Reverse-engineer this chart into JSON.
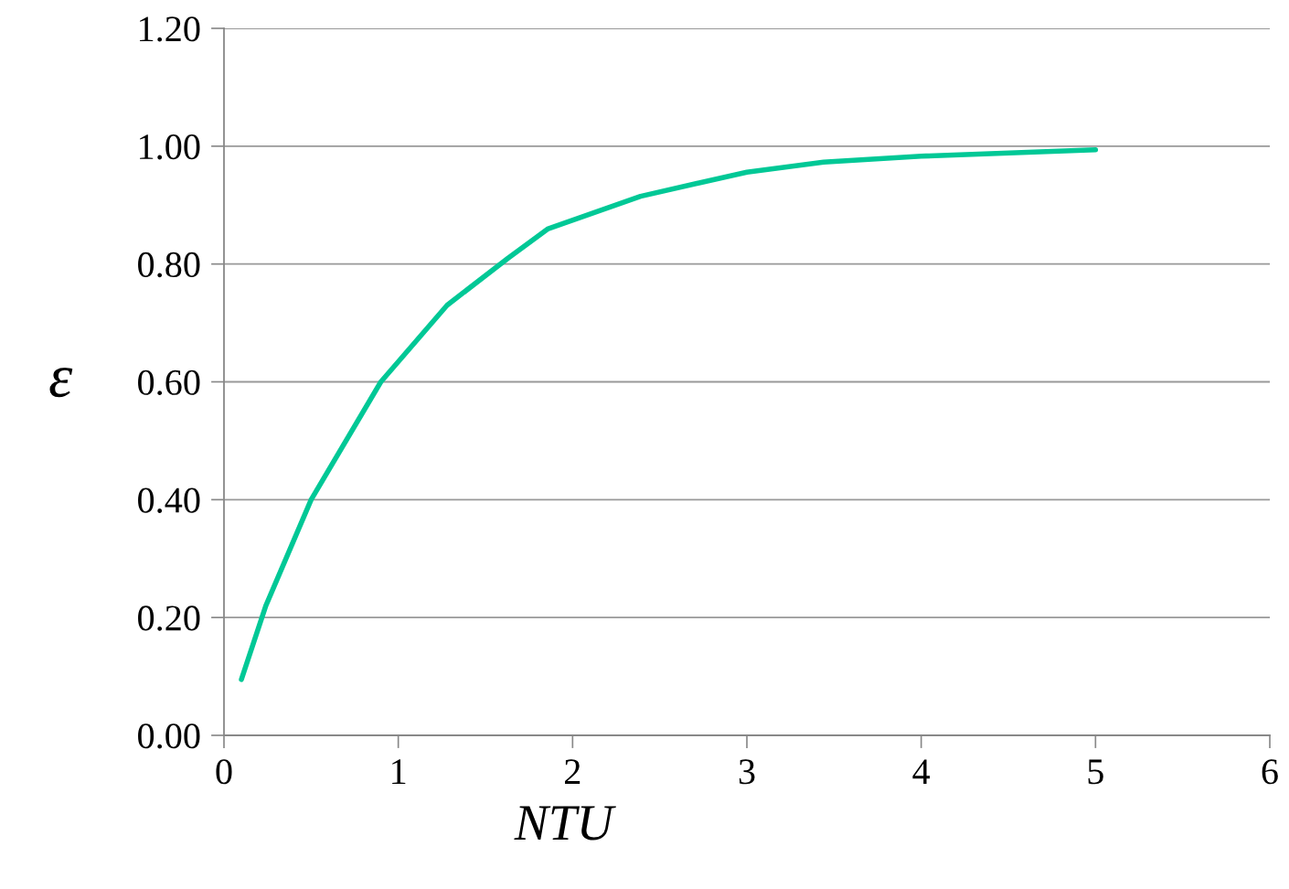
{
  "chart_data": {
    "type": "line",
    "xlabel": "NTU",
    "ylabel": "ε",
    "x": [
      0.1,
      0.24,
      0.5,
      0.9,
      1.28,
      1.63,
      1.86,
      2.39,
      3.0,
      3.44,
      4.0,
      5.0
    ],
    "series": [
      {
        "color": "#00c896",
        "values": [
          0.095,
          0.22,
          0.4,
          0.6,
          0.73,
          0.81,
          0.86,
          0.915,
          0.956,
          0.973,
          0.983,
          0.994
        ]
      }
    ],
    "xlim": [
      0,
      6
    ],
    "xticks": [
      0,
      1,
      2,
      3,
      4,
      5,
      6
    ],
    "ylim": [
      0,
      1.2
    ],
    "yticks": [
      {
        "value": 0,
        "label": "0.00"
      },
      {
        "value": 0.2,
        "label": "0.20"
      },
      {
        "value": 0.4,
        "label": "0.40"
      },
      {
        "value": 0.6,
        "label": "0.60"
      },
      {
        "value": 0.8,
        "label": "0.80"
      },
      {
        "value": 1.0,
        "label": "1.00"
      },
      {
        "value": 1.2,
        "label": "1.20"
      }
    ],
    "grid": "y",
    "marker": "none",
    "line_style": "solid",
    "legend": false
  }
}
